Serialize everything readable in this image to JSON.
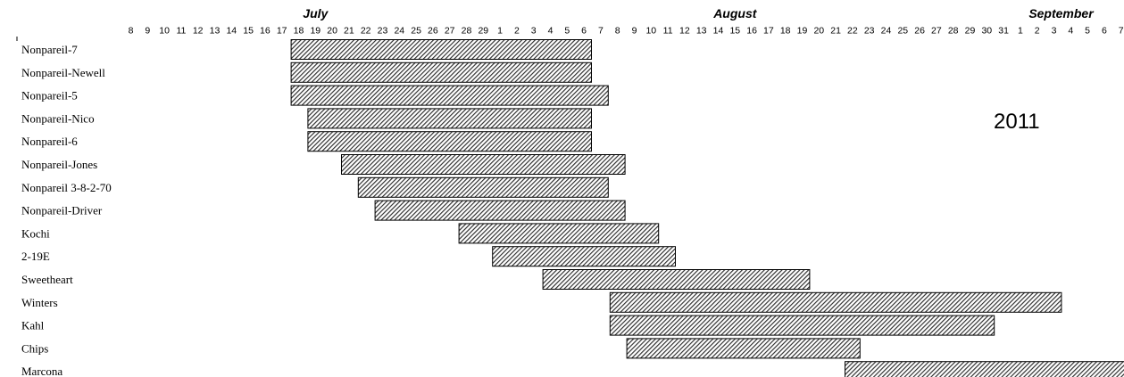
{
  "chart_data": {
    "type": "bar",
    "orientation": "horizontal",
    "annotation": "2011",
    "months": [
      {
        "name": "July",
        "at": "2011-07-19"
      },
      {
        "name": "August",
        "at": "2011-08-15"
      },
      {
        "name": "September",
        "at": "2011-09-03"
      }
    ],
    "x_ticks": [
      {
        "date": "2011-07-08",
        "label": "8"
      },
      {
        "date": "2011-07-09",
        "label": "9"
      },
      {
        "date": "2011-07-10",
        "label": "10"
      },
      {
        "date": "2011-07-11",
        "label": "11"
      },
      {
        "date": "2011-07-12",
        "label": "12"
      },
      {
        "date": "2011-07-13",
        "label": "13"
      },
      {
        "date": "2011-07-14",
        "label": "14"
      },
      {
        "date": "2011-07-15",
        "label": "15"
      },
      {
        "date": "2011-07-16",
        "label": "16"
      },
      {
        "date": "2011-07-17",
        "label": "17"
      },
      {
        "date": "2011-07-18",
        "label": "18"
      },
      {
        "date": "2011-07-19",
        "label": "19"
      },
      {
        "date": "2011-07-20",
        "label": "20"
      },
      {
        "date": "2011-07-21",
        "label": "21"
      },
      {
        "date": "2011-07-22",
        "label": "22"
      },
      {
        "date": "2011-07-23",
        "label": "23"
      },
      {
        "date": "2011-07-24",
        "label": "24"
      },
      {
        "date": "2011-07-25",
        "label": "25"
      },
      {
        "date": "2011-07-26",
        "label": "26"
      },
      {
        "date": "2011-07-27",
        "label": "27"
      },
      {
        "date": "2011-07-28",
        "label": "28"
      },
      {
        "date": "2011-07-29",
        "label": "29"
      },
      {
        "date": "2011-08-01",
        "label": "1"
      },
      {
        "date": "2011-08-02",
        "label": "2"
      },
      {
        "date": "2011-08-03",
        "label": "3"
      },
      {
        "date": "2011-08-04",
        "label": "4"
      },
      {
        "date": "2011-08-05",
        "label": "5"
      },
      {
        "date": "2011-08-06",
        "label": "6"
      },
      {
        "date": "2011-08-07",
        "label": "7"
      },
      {
        "date": "2011-08-08",
        "label": "8"
      },
      {
        "date": "2011-08-09",
        "label": "9"
      },
      {
        "date": "2011-08-10",
        "label": "10"
      },
      {
        "date": "2011-08-11",
        "label": "11"
      },
      {
        "date": "2011-08-12",
        "label": "12"
      },
      {
        "date": "2011-08-13",
        "label": "13"
      },
      {
        "date": "2011-08-14",
        "label": "14"
      },
      {
        "date": "2011-08-15",
        "label": "15"
      },
      {
        "date": "2011-08-16",
        "label": "16"
      },
      {
        "date": "2011-08-17",
        "label": "17"
      },
      {
        "date": "2011-08-18",
        "label": "18"
      },
      {
        "date": "2011-08-19",
        "label": "19"
      },
      {
        "date": "2011-08-20",
        "label": "20"
      },
      {
        "date": "2011-08-21",
        "label": "21"
      },
      {
        "date": "2011-08-22",
        "label": "22"
      },
      {
        "date": "2011-08-23",
        "label": "23"
      },
      {
        "date": "2011-08-24",
        "label": "24"
      },
      {
        "date": "2011-08-25",
        "label": "25"
      },
      {
        "date": "2011-08-26",
        "label": "26"
      },
      {
        "date": "2011-08-27",
        "label": "27"
      },
      {
        "date": "2011-08-28",
        "label": "28"
      },
      {
        "date": "2011-08-29",
        "label": "29"
      },
      {
        "date": "2011-08-30",
        "label": "30"
      },
      {
        "date": "2011-08-31",
        "label": "31"
      },
      {
        "date": "2011-09-01",
        "label": "1"
      },
      {
        "date": "2011-09-02",
        "label": "2"
      },
      {
        "date": "2011-09-03",
        "label": "3"
      },
      {
        "date": "2011-09-04",
        "label": "4"
      },
      {
        "date": "2011-09-05",
        "label": "5"
      },
      {
        "date": "2011-09-06",
        "label": "6"
      },
      {
        "date": "2011-09-07",
        "label": "7"
      }
    ],
    "categories": [
      "Nonpareil-7",
      "Nonpareil-Newell",
      "Nonpareil-5",
      "Nonpareil-Nico",
      "Nonpareil-6",
      "Nonpareil-Jones",
      "Nonpareil 3-8-2-70",
      "Nonpareil-Driver",
      "Kochi",
      "2-19E",
      "Sweetheart",
      "Winters",
      "Kahl",
      "Chips",
      "Marcona"
    ],
    "bars": [
      {
        "start": "2011-07-18",
        "end": "2011-08-06"
      },
      {
        "start": "2011-07-18",
        "end": "2011-08-06"
      },
      {
        "start": "2011-07-18",
        "end": "2011-08-07"
      },
      {
        "start": "2011-07-19",
        "end": "2011-08-06"
      },
      {
        "start": "2011-07-19",
        "end": "2011-08-06"
      },
      {
        "start": "2011-07-21",
        "end": "2011-08-08"
      },
      {
        "start": "2011-07-22",
        "end": "2011-08-07"
      },
      {
        "start": "2011-07-23",
        "end": "2011-08-08"
      },
      {
        "start": "2011-07-28",
        "end": "2011-08-10"
      },
      {
        "start": "2011-08-01",
        "end": "2011-08-11"
      },
      {
        "start": "2011-08-04",
        "end": "2011-08-19"
      },
      {
        "start": "2011-08-08",
        "end": "2011-09-03"
      },
      {
        "start": "2011-08-08",
        "end": "2011-08-30"
      },
      {
        "start": "2011-08-09",
        "end": "2011-08-22"
      },
      {
        "start": "2011-08-22",
        "end": "2011-09-07"
      }
    ],
    "bar_pattern": "diagonal-hatch",
    "colors": {
      "bar_fill": "#2a2a2a",
      "bar_stroke": "#000000",
      "background": "#ffffff"
    }
  }
}
